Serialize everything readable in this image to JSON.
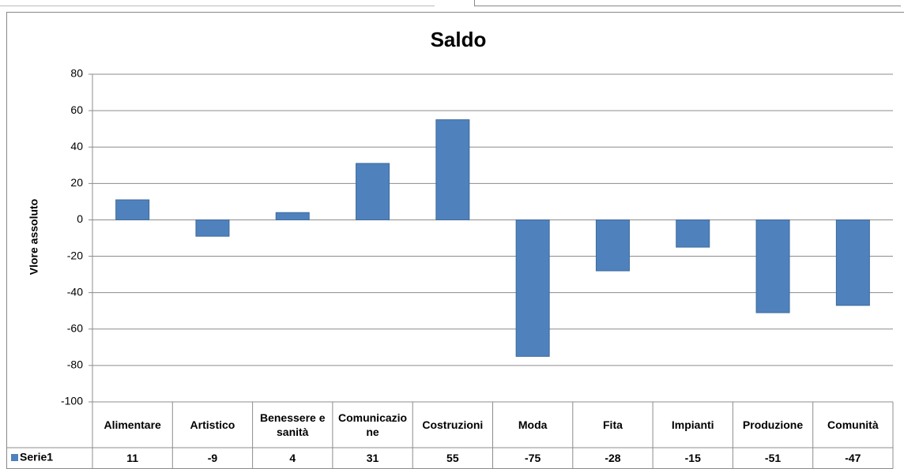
{
  "chart_data": {
    "type": "bar",
    "title": "Saldo",
    "y_label": "Vlore assoluto",
    "categories": [
      "Alimentare",
      "Artistico",
      "Benessere e sanità",
      "Comunicazione",
      "Costruzioni",
      "Moda",
      "Fita",
      "Impianti",
      "Produzione",
      "Comunità"
    ],
    "series": [
      {
        "name": "Serie1",
        "color": "#4f81bd",
        "values": [
          11,
          -9,
          4,
          31,
          55,
          -75,
          -28,
          -15,
          -51,
          -47
        ]
      }
    ],
    "ylim": [
      -100,
      80
    ],
    "yticks": [
      -100,
      -80,
      -60,
      -40,
      -20,
      0,
      20,
      40,
      60,
      80
    ],
    "grid": true,
    "data_table": true
  }
}
